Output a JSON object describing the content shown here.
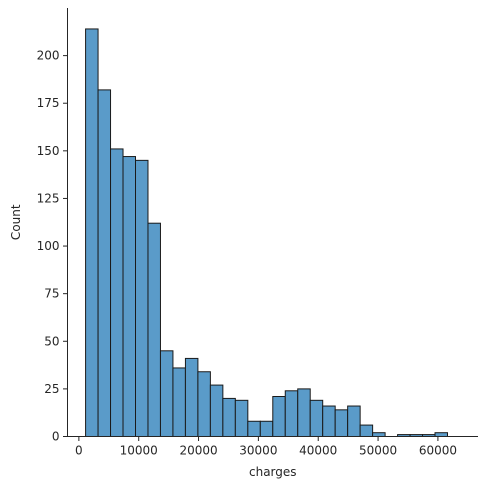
{
  "chart_data": {
    "type": "bar",
    "subtype": "histogram",
    "xlabel": "charges",
    "ylabel": "Count",
    "xlim": [
      -1900,
      66700
    ],
    "ylim": [
      0,
      225
    ],
    "x_ticks": [
      0,
      10000,
      20000,
      30000,
      40000,
      50000,
      60000
    ],
    "x_tick_labels": [
      "0",
      "10000",
      "20000",
      "30000",
      "40000",
      "50000",
      "60000"
    ],
    "y_ticks": [
      0,
      25,
      50,
      75,
      100,
      125,
      150,
      175,
      200
    ],
    "y_tick_labels": [
      "0",
      "25",
      "50",
      "75",
      "100",
      "125",
      "150",
      "175",
      "200"
    ],
    "bin_edges": [
      1122,
      3208,
      5293,
      7379,
      9464,
      11550,
      13635,
      15721,
      17807,
      19892,
      21978,
      24063,
      26149,
      28235,
      30320,
      32406,
      34491,
      36577,
      38662,
      40748,
      42834,
      44919,
      47005,
      49090,
      51176,
      53261,
      55347,
      57433,
      59518,
      61604,
      63689
    ],
    "counts": [
      214,
      182,
      151,
      147,
      145,
      112,
      45,
      36,
      41,
      34,
      27,
      20,
      19,
      8,
      8,
      21,
      24,
      25,
      19,
      16,
      14,
      16,
      6,
      2,
      0,
      1,
      1,
      1,
      2,
      0
    ],
    "bar_color": "#5a9bc9",
    "edge_color": "#1a1a1a",
    "grid": false
  }
}
